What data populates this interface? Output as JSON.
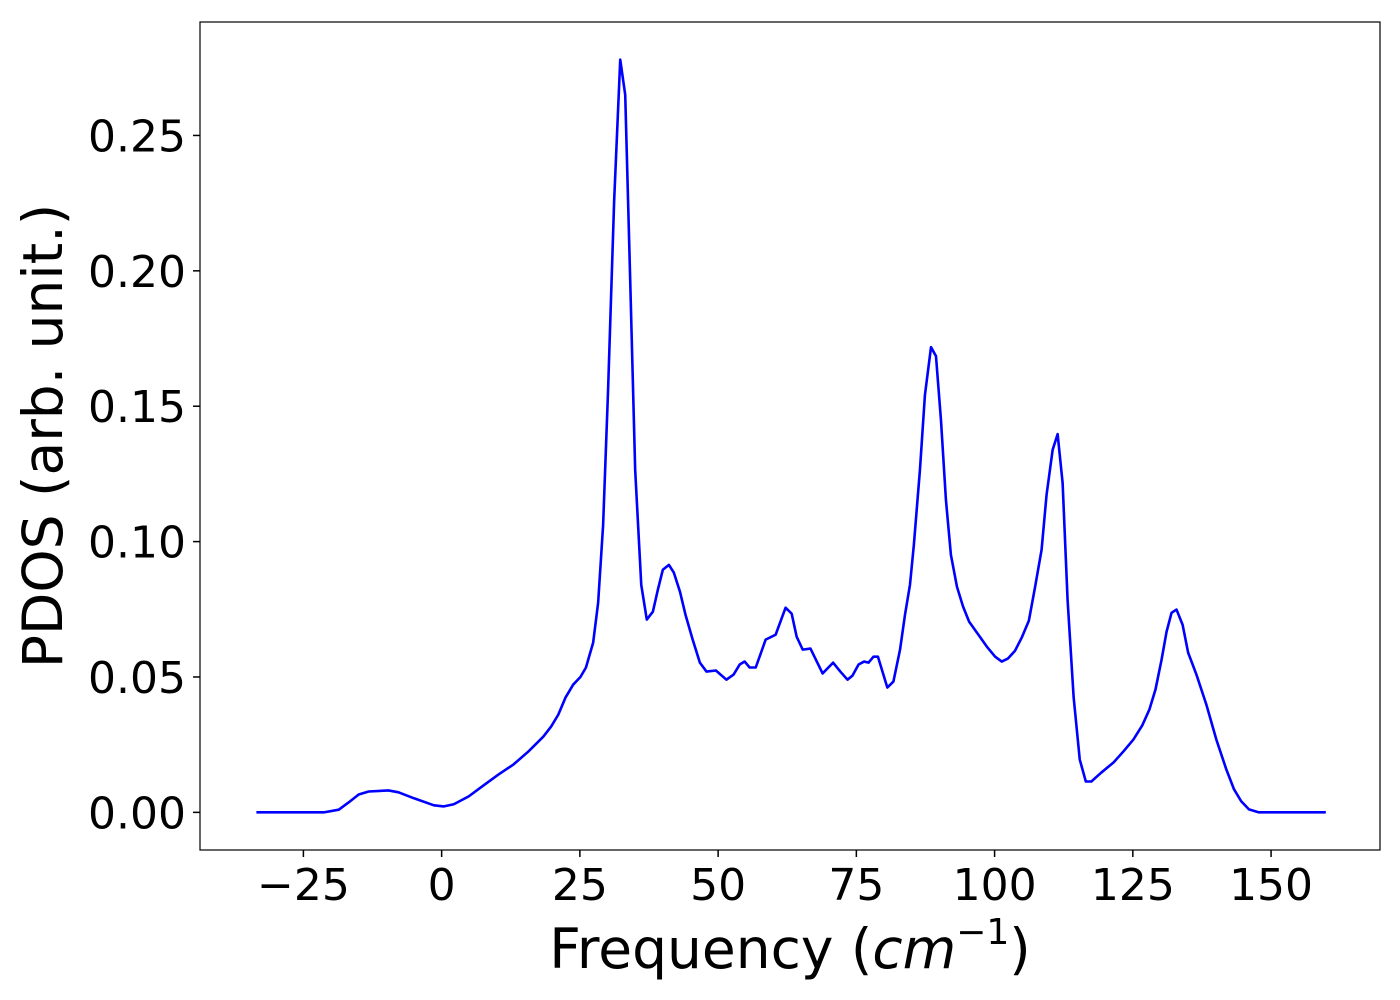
{
  "chart_data": {
    "type": "line",
    "xlabel": [
      "Frequency (",
      "cm",
      "−1",
      ")"
    ],
    "ylabel": "PDOS (arb. unit.)",
    "xlim": [
      -43.7,
      169.7
    ],
    "ylim": [
      -0.0139,
      0.2919
    ],
    "xticks": [
      {
        "value": -25,
        "label": "−25"
      },
      0,
      25,
      50,
      75,
      100,
      125,
      150
    ],
    "yticks": [
      {
        "value": 0,
        "label": "0.00"
      },
      {
        "value": 0.05,
        "label": "0.05"
      },
      {
        "value": 0.1,
        "label": "0.10"
      },
      {
        "value": 0.15,
        "label": "0.15"
      },
      {
        "value": 0.2,
        "label": "0.20"
      },
      {
        "value": 0.25,
        "label": "0.25"
      }
    ],
    "series": [
      {
        "color": "#0000ff",
        "x": [
          -33.5,
          -21.3,
          -18.6,
          -16.8,
          -15.0,
          -13.2,
          -9.6,
          -7.8,
          -5.0,
          -1.4,
          0.4,
          2.2,
          4.9,
          7.6,
          10.3,
          13.0,
          15.7,
          18.4,
          19.8,
          21.1,
          22.4,
          23.8,
          25.1,
          26.1,
          27.4,
          28.3,
          29.2,
          30.1,
          31.2,
          32.3,
          33.2,
          34.1,
          35.0,
          36.1,
          37.1,
          38.2,
          39.1,
          40.0,
          41.1,
          42.0,
          43.1,
          44.1,
          45.4,
          46.7,
          47.9,
          49.6,
          51.5,
          52.8,
          53.9,
          54.8,
          55.7,
          56.8,
          58.6,
          60.4,
          62.2,
          63.3,
          64.2,
          65.3,
          66.7,
          68.9,
          70.8,
          72.1,
          73.4,
          74.3,
          75.4,
          76.4,
          77.2,
          78.1,
          78.9,
          80.6,
          81.7,
          82.9,
          83.8,
          84.7,
          85.4,
          86.5,
          87.4,
          88.5,
          89.4,
          90.3,
          91.2,
          92.1,
          93.2,
          94.3,
          95.4,
          96.8,
          98.6,
          100.1,
          101.3,
          102.4,
          103.7,
          104.9,
          106.2,
          107.3,
          108.5,
          109.4,
          110.5,
          111.4,
          112.3,
          113.2,
          114.3,
          115.4,
          116.5,
          117.5,
          119.3,
          121.5,
          123.3,
          125.1,
          126.7,
          128.0,
          129.1,
          130.2,
          131.1,
          132.0,
          132.9,
          134.0,
          135.0,
          136.5,
          138.3,
          140.1,
          141.9,
          143.3,
          144.6,
          146.0,
          147.8,
          159.9
        ],
        "values": [
          0,
          0,
          0.001,
          0.0037,
          0.0066,
          0.0077,
          0.0081,
          0.0074,
          0.0052,
          0.0026,
          0.0022,
          0.003,
          0.0059,
          0.01,
          0.014,
          0.0177,
          0.0225,
          0.028,
          0.0317,
          0.0361,
          0.0424,
          0.0472,
          0.05,
          0.0535,
          0.0627,
          0.0774,
          0.106,
          0.156,
          0.226,
          0.278,
          0.265,
          0.1965,
          0.1265,
          0.084,
          0.0712,
          0.0741,
          0.0822,
          0.0896,
          0.0914,
          0.0885,
          0.0815,
          0.073,
          0.0638,
          0.0553,
          0.052,
          0.0524,
          0.049,
          0.0509,
          0.0546,
          0.0557,
          0.0535,
          0.0535,
          0.0638,
          0.0656,
          0.0756,
          0.0734,
          0.0649,
          0.0601,
          0.0605,
          0.0513,
          0.0553,
          0.052,
          0.049,
          0.0505,
          0.0546,
          0.0557,
          0.0553,
          0.0575,
          0.0575,
          0.0461,
          0.0483,
          0.0601,
          0.073,
          0.0841,
          0.0988,
          0.1265,
          0.1541,
          0.1718,
          0.1685,
          0.1449,
          0.1154,
          0.0951,
          0.0833,
          0.076,
          0.0704,
          0.0664,
          0.0612,
          0.0575,
          0.0557,
          0.0568,
          0.0597,
          0.0645,
          0.0708,
          0.083,
          0.097,
          0.1173,
          0.1339,
          0.1397,
          0.1217,
          0.0785,
          0.0424,
          0.0195,
          0.0114,
          0.0114,
          0.0147,
          0.0184,
          0.0225,
          0.0269,
          0.0321,
          0.038,
          0.0454,
          0.0564,
          0.0667,
          0.0737,
          0.0749,
          0.0693,
          0.059,
          0.0509,
          0.0398,
          0.0269,
          0.0159,
          0.0085,
          0.0041,
          0.0011,
          0,
          0
        ]
      }
    ]
  }
}
